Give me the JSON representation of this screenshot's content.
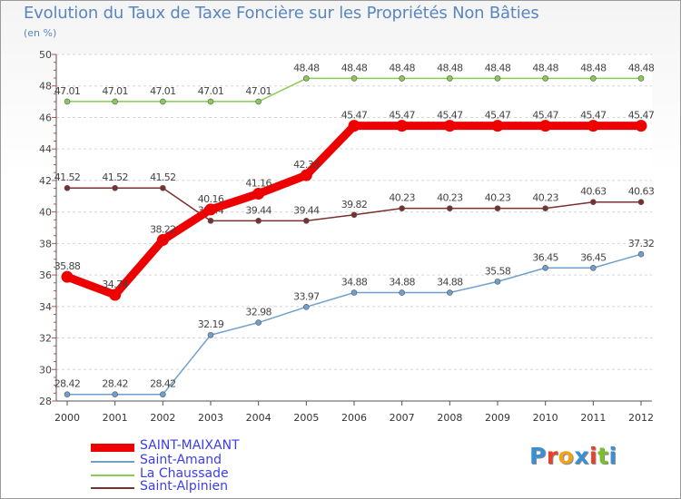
{
  "header": {
    "title": "Evolution du Taux de Taxe Foncière sur les Propriétés Non Bâties",
    "unit": "(en %)"
  },
  "logo": {
    "text": "Proxiti",
    "letters": [
      "P",
      "r",
      "o",
      "x",
      "i",
      "t",
      "i"
    ],
    "colors": [
      "#3b8fd4",
      "#e8412b",
      "#f0a21f",
      "#3b8fd4",
      "#e8412b",
      "#7bbf2a",
      "#3b8fd4"
    ]
  },
  "chart_data": {
    "type": "line",
    "title": "Evolution du Taux de Taxe Foncière sur les Propriétés Non Bâties",
    "ylabel": "(en %)",
    "xlabel": "",
    "ylim": [
      28,
      50
    ],
    "yticks": [
      "28",
      "30",
      "32",
      "34",
      "36",
      "38",
      "40",
      "42",
      "44",
      "46",
      "48",
      "50"
    ],
    "categories": [
      "2000",
      "2001",
      "2002",
      "2003",
      "2004",
      "2005",
      "2006",
      "2007",
      "2008",
      "2009",
      "2010",
      "2011",
      "2012"
    ],
    "grid": "horizontal",
    "legend_position": "bottom-left",
    "series": [
      {
        "name": "SAINT-MAIXANT",
        "color": "#ee0000",
        "values": [
          35.88,
          34.74,
          38.22,
          40.16,
          41.16,
          42.33,
          45.47,
          45.47,
          45.47,
          45.47,
          45.47,
          45.47,
          45.47
        ],
        "labels": [
          "35.88",
          "34.74",
          "38.22",
          "40.16",
          "41.16",
          "42.33",
          "45.47",
          "45.47",
          "45.47",
          "45.47",
          "45.47",
          "45.47",
          "45.47"
        ]
      },
      {
        "name": "Saint-Amand",
        "color": "#6fa0cc",
        "values": [
          28.42,
          28.42,
          28.42,
          32.19,
          32.98,
          33.97,
          34.88,
          34.88,
          34.88,
          35.58,
          36.45,
          36.45,
          37.32
        ],
        "labels": [
          "28.42",
          "28.42",
          "28.42",
          "32.19",
          "32.98",
          "33.97",
          "34.88",
          "34.88",
          "34.88",
          "35.58",
          "36.45",
          "36.45",
          "37.32"
        ]
      },
      {
        "name": "La Chaussade",
        "color": "#88cc55",
        "values": [
          47.01,
          47.01,
          47.01,
          47.01,
          47.01,
          48.48,
          48.48,
          48.48,
          48.48,
          48.48,
          48.48,
          48.48,
          48.48
        ],
        "labels": [
          "47.01",
          "47.01",
          "47.01",
          "47.01",
          "47.01",
          "48.48",
          "48.48",
          "48.48",
          "48.48",
          "48.48",
          "48.48",
          "48.48",
          "48.48"
        ]
      },
      {
        "name": "Saint-Alpinien",
        "color": "#7a3030",
        "values": [
          41.52,
          41.52,
          41.52,
          39.44,
          39.44,
          39.44,
          39.82,
          40.23,
          40.23,
          40.23,
          40.23,
          40.63,
          40.63
        ],
        "labels": [
          "41.52",
          "41.52",
          "41.52",
          "39.44",
          "39.44",
          "39.44",
          "39.82",
          "40.23",
          "40.23",
          "40.23",
          "40.23",
          "40.63",
          "40.63"
        ]
      }
    ]
  }
}
